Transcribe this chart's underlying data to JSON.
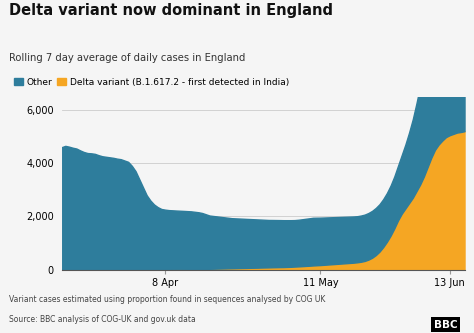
{
  "title": "Delta variant now dominant in England",
  "subtitle": "Rolling 7 day average of daily cases in England",
  "legend_other": "Other",
  "legend_delta": "Delta variant (B.1.617.2 - first detected in India)",
  "color_other": "#2E7D9C",
  "color_delta": "#F5A623",
  "background_color": "#f5f5f5",
  "footnote1": "Variant cases estimated using proportion found in sequences analysed by COG UK",
  "footnote2": "Source: BBC analysis of COG-UK and gov.uk data",
  "xtick_labels": [
    "8 Apr",
    "11 May",
    "13 Jun"
  ],
  "xtick_positions": [
    28,
    70,
    105
  ],
  "ylim": [
    0,
    6500
  ],
  "yticks": [
    0,
    2000,
    4000,
    6000
  ],
  "total_points": 110,
  "other_series": [
    4600,
    4650,
    4620,
    4580,
    4550,
    4480,
    4420,
    4380,
    4370,
    4350,
    4300,
    4260,
    4240,
    4220,
    4200,
    4170,
    4150,
    4100,
    4050,
    3900,
    3700,
    3400,
    3100,
    2800,
    2600,
    2450,
    2350,
    2280,
    2250,
    2230,
    2220,
    2210,
    2200,
    2190,
    2180,
    2170,
    2150,
    2130,
    2100,
    2050,
    2000,
    1980,
    1960,
    1940,
    1920,
    1900,
    1880,
    1870,
    1860,
    1850,
    1840,
    1830,
    1820,
    1810,
    1800,
    1790,
    1780,
    1775,
    1770,
    1765,
    1760,
    1755,
    1750,
    1745,
    1750,
    1760,
    1770,
    1780,
    1790,
    1785,
    1780,
    1775,
    1770,
    1765,
    1760,
    1755,
    1750,
    1745,
    1740,
    1735,
    1730,
    1735,
    1740,
    1750,
    1760,
    1770,
    1780,
    1800,
    1830,
    1880,
    1950,
    2050,
    2200,
    2400,
    2650,
    2950,
    3300,
    3700,
    4200,
    4800,
    5300,
    5600,
    5800,
    5950,
    6050,
    6100,
    6130,
    6150,
    6160,
    6200
  ],
  "delta_series": [
    0,
    0,
    0,
    0,
    0,
    0,
    0,
    0,
    0,
    0,
    0,
    0,
    0,
    0,
    0,
    0,
    0,
    0,
    0,
    0,
    0,
    0,
    0,
    0,
    0,
    0,
    0,
    0,
    5,
    8,
    10,
    12,
    15,
    18,
    20,
    22,
    25,
    28,
    30,
    33,
    35,
    38,
    42,
    45,
    48,
    52,
    55,
    58,
    62,
    65,
    68,
    72,
    75,
    78,
    82,
    85,
    88,
    92,
    95,
    98,
    100,
    105,
    110,
    118,
    125,
    133,
    142,
    150,
    160,
    168,
    175,
    185,
    195,
    205,
    215,
    225,
    235,
    245,
    255,
    265,
    280,
    300,
    330,
    380,
    450,
    550,
    680,
    850,
    1050,
    1280,
    1550,
    1850,
    2100,
    2300,
    2500,
    2700,
    2950,
    3200,
    3500,
    3850,
    4200,
    4500,
    4700,
    4850,
    4980,
    5050,
    5100,
    5150,
    5170,
    5200
  ]
}
